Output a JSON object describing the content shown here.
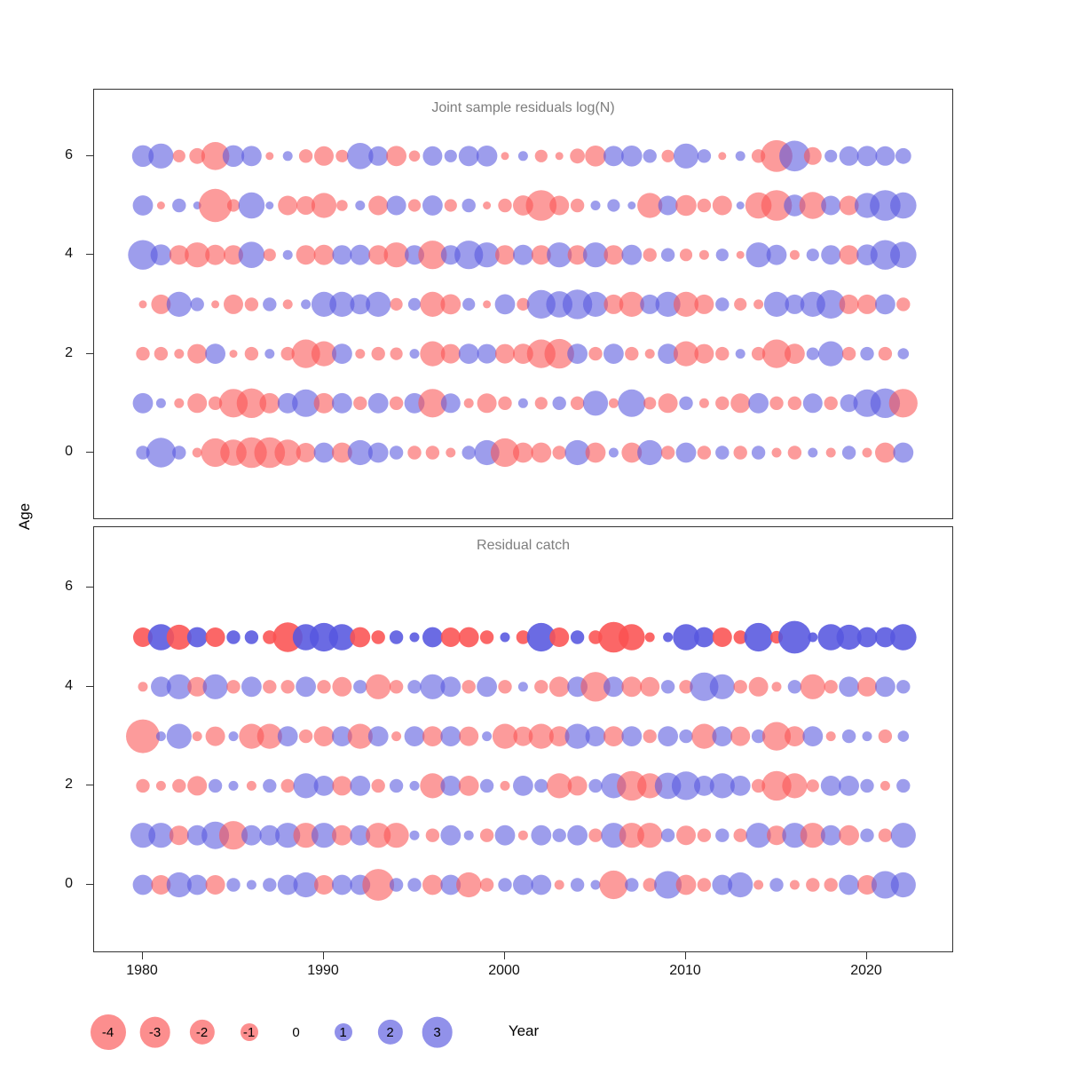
{
  "figure": {
    "y_axis_label": "Age",
    "x_axis_label": "Year"
  },
  "axes": {
    "x_ticks": [
      1980,
      1990,
      2000,
      2010,
      2020
    ],
    "y_ticks": [
      0,
      2,
      4,
      6
    ]
  },
  "legend": {
    "values": [
      -4,
      -3,
      -2,
      -1,
      0,
      1,
      2,
      3
    ]
  },
  "colors": {
    "negative": "#FA5252",
    "positive": "#5656DF",
    "title_gray": "#7e7e7e"
  },
  "chart_data": [
    {
      "type": "bubble",
      "title": "Joint sample residuals log(N)",
      "xlabel": "Year",
      "ylabel": "Age",
      "xlim": [
        1977,
        2025
      ],
      "ylim": [
        -1,
        7
      ],
      "ages": [
        0,
        1,
        2,
        3,
        4,
        5,
        6
      ],
      "years": [
        1980,
        1981,
        1982,
        1983,
        1984,
        1985,
        1986,
        1987,
        1988,
        1989,
        1990,
        1991,
        1992,
        1993,
        1994,
        1995,
        1996,
        1997,
        1998,
        1999,
        2000,
        2001,
        2002,
        2003,
        2004,
        2005,
        2006,
        2007,
        2008,
        2009,
        2010,
        2011,
        2012,
        2013,
        2014,
        2015,
        2016,
        2017,
        2018,
        2019,
        2020,
        2021,
        2022
      ],
      "series": [
        {
          "age": 6,
          "values": [
            1.5,
            2.0,
            -0.5,
            -0.8,
            -2.5,
            1.5,
            1.3,
            -0.2,
            0.3,
            -0.6,
            -1.2,
            -0.5,
            2.2,
            1.2,
            -1.3,
            -0.4,
            1.2,
            0.5,
            1.3,
            1.4,
            -0.2,
            0.3,
            -0.5,
            -0.2,
            -0.7,
            -1.4,
            1.3,
            1.4,
            0.6,
            -0.5,
            2.0,
            0.6,
            -0.2,
            0.3,
            -0.6,
            -3.2,
            3.0,
            -1.0,
            0.5,
            1.2,
            1.3,
            1.2,
            0.8
          ]
        },
        {
          "age": 5,
          "values": [
            1.3,
            -0.2,
            0.6,
            0.2,
            -3.5,
            -0.5,
            2.2,
            0.2,
            -1.2,
            -1.1,
            -2.0,
            -0.4,
            0.3,
            -1.2,
            1.2,
            -0.5,
            1.3,
            -0.5,
            0.6,
            -0.2,
            -0.6,
            -1.3,
            -3.0,
            -1.2,
            -0.6,
            0.3,
            0.5,
            0.2,
            -2.0,
            1.2,
            -1.4,
            -0.6,
            -1.2,
            0.2,
            -2.2,
            -3.0,
            1.5,
            -2.3,
            1.2,
            -1.2,
            2.0,
            3.0,
            2.2
          ]
        },
        {
          "age": 4,
          "values": [
            2.8,
            1.4,
            -1.2,
            -2.0,
            -1.3,
            -1.2,
            2.2,
            -0.5,
            0.3,
            -1.2,
            -1.3,
            1.2,
            1.3,
            -1.2,
            -2.0,
            1.2,
            -2.6,
            1.2,
            2.6,
            2.0,
            -1.2,
            1.3,
            -1.2,
            2.0,
            -1.2,
            2.0,
            -1.2,
            1.3,
            -0.6,
            0.6,
            -0.5,
            -0.3,
            0.5,
            -0.2,
            2.0,
            1.3,
            -0.3,
            0.5,
            1.2,
            -1.2,
            1.4,
            2.8,
            2.2
          ]
        },
        {
          "age": 3,
          "values": [
            -0.2,
            -1.2,
            2.0,
            0.6,
            -0.2,
            -1.2,
            -0.6,
            0.6,
            -0.3,
            0.3,
            2.0,
            2.0,
            1.3,
            2.0,
            -0.5,
            0.5,
            -2.0,
            -1.3,
            0.5,
            -0.2,
            1.3,
            -0.5,
            2.6,
            2.2,
            2.8,
            2.0,
            -1.2,
            -2.0,
            1.2,
            2.0,
            -2.0,
            -1.2,
            0.6,
            -0.5,
            -0.3,
            2.0,
            1.2,
            2.0,
            2.6,
            -1.2,
            -1.2,
            1.3,
            -0.6
          ]
        },
        {
          "age": 2,
          "values": [
            -0.6,
            -0.6,
            -0.3,
            -1.2,
            1.3,
            -0.2,
            -0.6,
            0.3,
            -0.6,
            -2.6,
            -2.0,
            1.3,
            -0.3,
            -0.6,
            -0.5,
            0.3,
            -2.0,
            -1.2,
            1.3,
            1.2,
            -1.2,
            -1.3,
            -2.6,
            -2.8,
            1.3,
            -0.6,
            1.3,
            -0.6,
            -0.3,
            1.3,
            -2.0,
            -1.2,
            -0.6,
            0.3,
            -0.6,
            -2.6,
            -1.3,
            0.5,
            2.0,
            -0.6,
            0.6,
            -0.6,
            0.4
          ]
        },
        {
          "age": 1,
          "values": [
            1.3,
            0.3,
            -0.3,
            -1.2,
            -0.6,
            -2.6,
            -2.8,
            -1.3,
            1.3,
            2.4,
            -1.3,
            1.3,
            -0.6,
            1.3,
            -0.6,
            1.3,
            -2.6,
            1.2,
            -0.3,
            -1.2,
            -0.6,
            0.3,
            -0.5,
            0.6,
            -0.6,
            2.0,
            -0.3,
            2.4,
            -0.5,
            -1.2,
            0.6,
            -0.3,
            -0.6,
            -1.2,
            1.3,
            -0.6,
            -0.6,
            1.2,
            -0.6,
            1.0,
            2.4,
            2.8,
            -2.6
          ]
        },
        {
          "age": 0,
          "values": [
            0.6,
            2.8,
            0.6,
            -0.3,
            -2.6,
            -2.2,
            -3.0,
            -3.0,
            -2.2,
            -1.2,
            1.3,
            -1.3,
            2.0,
            1.3,
            0.6,
            -0.6,
            -0.6,
            -0.3,
            0.6,
            2.0,
            -2.6,
            -1.3,
            -1.3,
            -0.6,
            2.0,
            -1.3,
            0.3,
            -1.3,
            2.0,
            -0.6,
            1.3,
            -0.6,
            0.6,
            -0.6,
            0.6,
            -0.3,
            -0.6,
            0.3,
            -0.3,
            0.6,
            -0.3,
            -1.3,
            1.3
          ]
        }
      ]
    },
    {
      "type": "bubble",
      "title": "Residual catch",
      "xlabel": "Year",
      "ylabel": "Age",
      "xlim": [
        1977,
        2025
      ],
      "ylim": [
        -1,
        7
      ],
      "ages": [
        0,
        1,
        2,
        3,
        4,
        5
      ],
      "emphasis_age": 5,
      "years": [
        1980,
        1981,
        1982,
        1983,
        1984,
        1985,
        1986,
        1987,
        1988,
        1989,
        1990,
        1991,
        1992,
        1993,
        1994,
        1995,
        1996,
        1997,
        1998,
        1999,
        2000,
        2001,
        2002,
        2003,
        2004,
        2005,
        2006,
        2007,
        2008,
        2009,
        2010,
        2011,
        2012,
        2013,
        2014,
        2015,
        2016,
        2017,
        2018,
        2019,
        2020,
        2021,
        2022
      ],
      "series": [
        {
          "age": 5,
          "values": [
            -1.2,
            2.2,
            -2.0,
            1.3,
            -1.2,
            0.6,
            0.6,
            -0.6,
            -2.8,
            2.2,
            2.6,
            2.2,
            -1.3,
            -0.6,
            0.6,
            0.3,
            1.3,
            -1.2,
            -1.3,
            -0.6,
            0.3,
            -0.6,
            2.6,
            -1.2,
            0.6,
            -0.6,
            -3.0,
            -2.2,
            -0.3,
            0.3,
            2.2,
            1.3,
            -1.2,
            -0.6,
            2.6,
            -0.5,
            3.4,
            0.3,
            2.2,
            2.0,
            1.3,
            1.3,
            2.2
          ]
        },
        {
          "age": 4,
          "values": [
            -0.3,
            1.3,
            2.0,
            -1.2,
            2.0,
            -0.6,
            1.3,
            -0.6,
            -0.6,
            1.3,
            -0.6,
            -1.2,
            0.6,
            -2.0,
            -0.6,
            0.6,
            2.0,
            1.3,
            -0.6,
            1.3,
            -0.6,
            0.3,
            -0.6,
            -1.3,
            1.3,
            -2.8,
            1.3,
            -1.3,
            -1.2,
            0.6,
            -0.6,
            2.6,
            2.0,
            -0.6,
            -1.2,
            -0.3,
            0.6,
            -2.0,
            -0.6,
            1.3,
            -1.2,
            1.3,
            0.6
          ]
        },
        {
          "age": 3,
          "values": [
            -3.6,
            0.3,
            2.0,
            -0.3,
            -1.2,
            0.3,
            -2.0,
            -2.0,
            1.3,
            -0.6,
            -1.3,
            1.3,
            -2.0,
            1.3,
            -0.3,
            1.3,
            -1.3,
            1.3,
            -1.2,
            0.3,
            -2.0,
            -1.2,
            -2.0,
            -1.3,
            2.0,
            1.3,
            -1.3,
            1.3,
            -0.6,
            1.3,
            0.6,
            -2.0,
            1.3,
            -1.2,
            0.6,
            -2.6,
            -1.3,
            1.3,
            -0.3,
            0.6,
            0.3,
            -0.6,
            0.4
          ]
        },
        {
          "age": 2,
          "values": [
            -0.6,
            -0.3,
            -0.6,
            -1.2,
            0.6,
            0.3,
            -0.3,
            0.6,
            -0.6,
            2.0,
            1.3,
            -1.2,
            1.3,
            -0.6,
            0.6,
            0.3,
            -2.0,
            1.3,
            -1.3,
            0.6,
            -0.3,
            1.3,
            0.6,
            -2.0,
            -1.2,
            0.6,
            2.0,
            -2.8,
            -2.0,
            2.2,
            2.6,
            1.3,
            2.0,
            1.3,
            -0.6,
            -2.8,
            -2.0,
            -0.5,
            1.3,
            1.3,
            0.6,
            -0.3,
            0.6
          ]
        },
        {
          "age": 1,
          "values": [
            2.0,
            2.0,
            -1.2,
            1.3,
            2.4,
            -2.6,
            1.3,
            1.3,
            2.0,
            -2.0,
            2.0,
            -1.3,
            1.3,
            -2.0,
            -2.0,
            0.3,
            -0.6,
            1.3,
            0.3,
            -0.6,
            1.3,
            -0.3,
            1.3,
            0.6,
            1.3,
            -0.6,
            2.0,
            -2.0,
            -2.0,
            0.6,
            -1.2,
            -0.6,
            0.6,
            -0.6,
            2.0,
            -1.2,
            2.0,
            -2.0,
            1.3,
            -1.3,
            0.6,
            -0.6,
            2.0
          ]
        },
        {
          "age": 0,
          "values": [
            1.3,
            -1.2,
            2.0,
            1.3,
            -1.2,
            0.6,
            0.3,
            0.6,
            1.3,
            2.0,
            -1.2,
            1.3,
            1.3,
            -3.2,
            0.6,
            0.6,
            -1.3,
            1.3,
            -2.0,
            -0.6,
            0.6,
            1.3,
            1.3,
            -0.3,
            0.6,
            0.3,
            -2.6,
            0.6,
            -0.6,
            2.4,
            -1.3,
            -0.6,
            1.3,
            2.0,
            -0.3,
            0.6,
            -0.3,
            -0.6,
            -0.6,
            1.3,
            -1.2,
            2.4,
            2.0
          ]
        }
      ]
    }
  ]
}
